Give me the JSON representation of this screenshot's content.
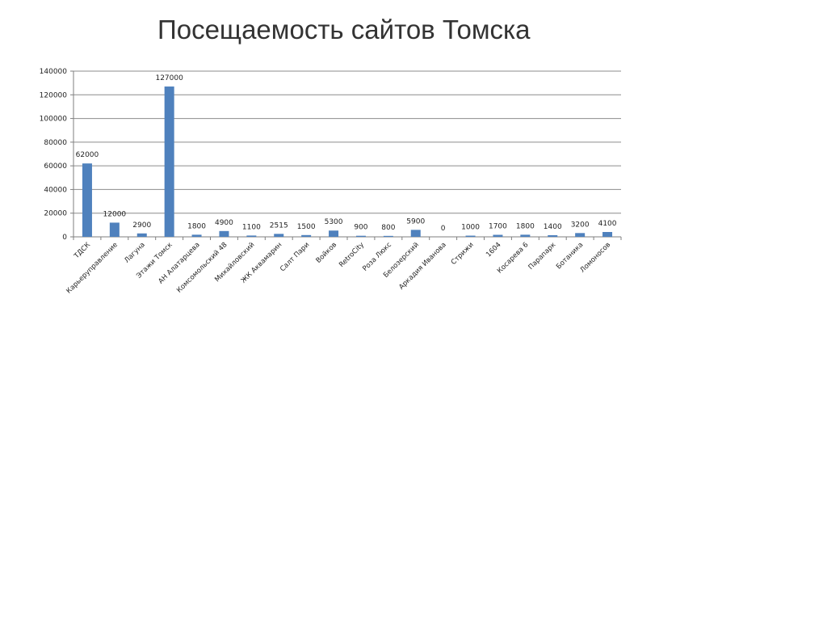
{
  "slide": {
    "title": "Посещаемость сайтов Томска"
  },
  "chart_data": {
    "type": "bar",
    "title": "",
    "xlabel": "",
    "ylabel": "",
    "ylim": [
      0,
      140000
    ],
    "yticks": [
      0,
      20000,
      40000,
      60000,
      80000,
      100000,
      120000,
      140000
    ],
    "grid": true,
    "legend": "none",
    "bar_color": "#4f81bd",
    "categories": [
      "ТДСК",
      "Карьеруправление",
      "Лагуна",
      "Этажи Томск",
      "АН Алатарцева",
      "Комсомольский 48",
      "Михайловский",
      "ЖК Аквамарин",
      "Салт Пари",
      "Войков",
      "RetroCity",
      "Роза Люкс",
      "Белозерский",
      "Аркадия Иванова",
      "Стрижи",
      "1604",
      "Косарева 6",
      "Парапарк",
      "Ботаника",
      "Ломоносов"
    ],
    "values": [
      62000,
      12000,
      2900,
      127000,
      1800,
      4900,
      1100,
      2515,
      1500,
      5300,
      900,
      800,
      5900,
      0,
      1000,
      1700,
      1800,
      1400,
      3200,
      4100
    ],
    "data_labels": [
      "62000",
      "12000",
      "2900",
      "127000",
      "1800",
      "4900",
      "1100",
      "2515",
      "1500",
      "5300",
      "900",
      "800",
      "5900",
      "0",
      "1000",
      "1700",
      "1800",
      "1400",
      "3200",
      "4100"
    ]
  }
}
